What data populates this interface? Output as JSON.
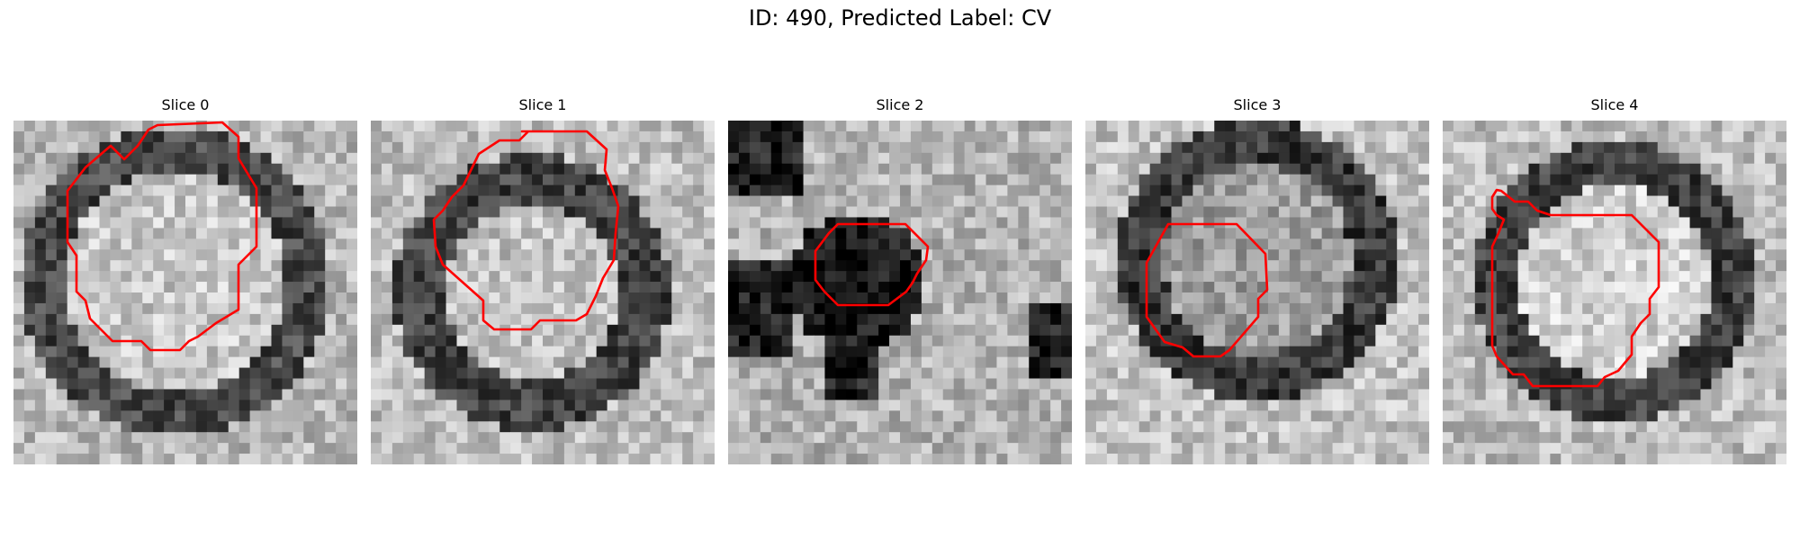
{
  "figure": {
    "title": "ID: 490, Predicted Label: CV"
  },
  "slices": [
    {
      "label": "Slice 0",
      "image_kind": "em-micrograph",
      "overlay_color": "#ff0000"
    },
    {
      "label": "Slice 1",
      "image_kind": "em-micrograph",
      "overlay_color": "#ff0000"
    },
    {
      "label": "Slice 2",
      "image_kind": "em-micrograph",
      "overlay_color": "#ff0000"
    },
    {
      "label": "Slice 3",
      "image_kind": "em-micrograph",
      "overlay_color": "#ff0000"
    },
    {
      "label": "Slice 4",
      "image_kind": "em-micrograph",
      "overlay_color": "#ff0000"
    }
  ]
}
